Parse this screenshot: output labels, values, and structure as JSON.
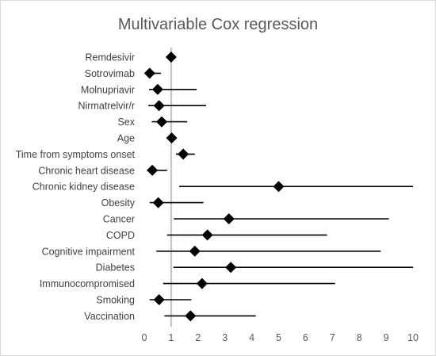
{
  "chart_data": {
    "type": "forest",
    "title": "Multivariable Cox regression",
    "xlim": [
      0,
      10
    ],
    "x_ticks": [
      0,
      1,
      2,
      3,
      4,
      5,
      6,
      7,
      8,
      9,
      10
    ],
    "reference_line": 1,
    "grid": false,
    "variables": [
      {
        "label": "Remdesivir",
        "estimate": 1.0,
        "ci_low": 1.0,
        "ci_high": 1.0
      },
      {
        "label": "Sotrovimab",
        "estimate": 0.2,
        "ci_low": 0.05,
        "ci_high": 0.62
      },
      {
        "label": "Molnupriavir",
        "estimate": 0.5,
        "ci_low": 0.18,
        "ci_high": 1.95
      },
      {
        "label": "Nirmatrelvir/r",
        "estimate": 0.55,
        "ci_low": 0.15,
        "ci_high": 2.3
      },
      {
        "label": "Sex",
        "estimate": 0.65,
        "ci_low": 0.28,
        "ci_high": 1.6
      },
      {
        "label": "Age",
        "estimate": 1.02,
        "ci_low": 0.98,
        "ci_high": 1.06
      },
      {
        "label": "Time from symptoms onset",
        "estimate": 1.45,
        "ci_low": 1.18,
        "ci_high": 1.88
      },
      {
        "label": "Chronic heart disease",
        "estimate": 0.3,
        "ci_low": 0.1,
        "ci_high": 0.85
      },
      {
        "label": "Chronic kidney disease",
        "estimate": 5.0,
        "ci_low": 1.3,
        "ci_high": 10.0
      },
      {
        "label": "Obesity",
        "estimate": 0.52,
        "ci_low": 0.2,
        "ci_high": 2.2
      },
      {
        "label": "Cancer",
        "estimate": 3.15,
        "ci_low": 1.1,
        "ci_high": 9.1
      },
      {
        "label": "COPD",
        "estimate": 2.35,
        "ci_low": 0.85,
        "ci_high": 6.8
      },
      {
        "label": "Cognitive impairment",
        "estimate": 1.88,
        "ci_low": 0.45,
        "ci_high": 8.8
      },
      {
        "label": "Diabetes",
        "estimate": 3.22,
        "ci_low": 1.08,
        "ci_high": 10.0
      },
      {
        "label": "Immunocompromised",
        "estimate": 2.15,
        "ci_low": 0.7,
        "ci_high": 7.1
      },
      {
        "label": "Smoking",
        "estimate": 0.55,
        "ci_low": 0.2,
        "ci_high": 1.75
      },
      {
        "label": "Vaccination",
        "estimate": 1.72,
        "ci_low": 0.75,
        "ci_high": 4.15
      }
    ]
  }
}
